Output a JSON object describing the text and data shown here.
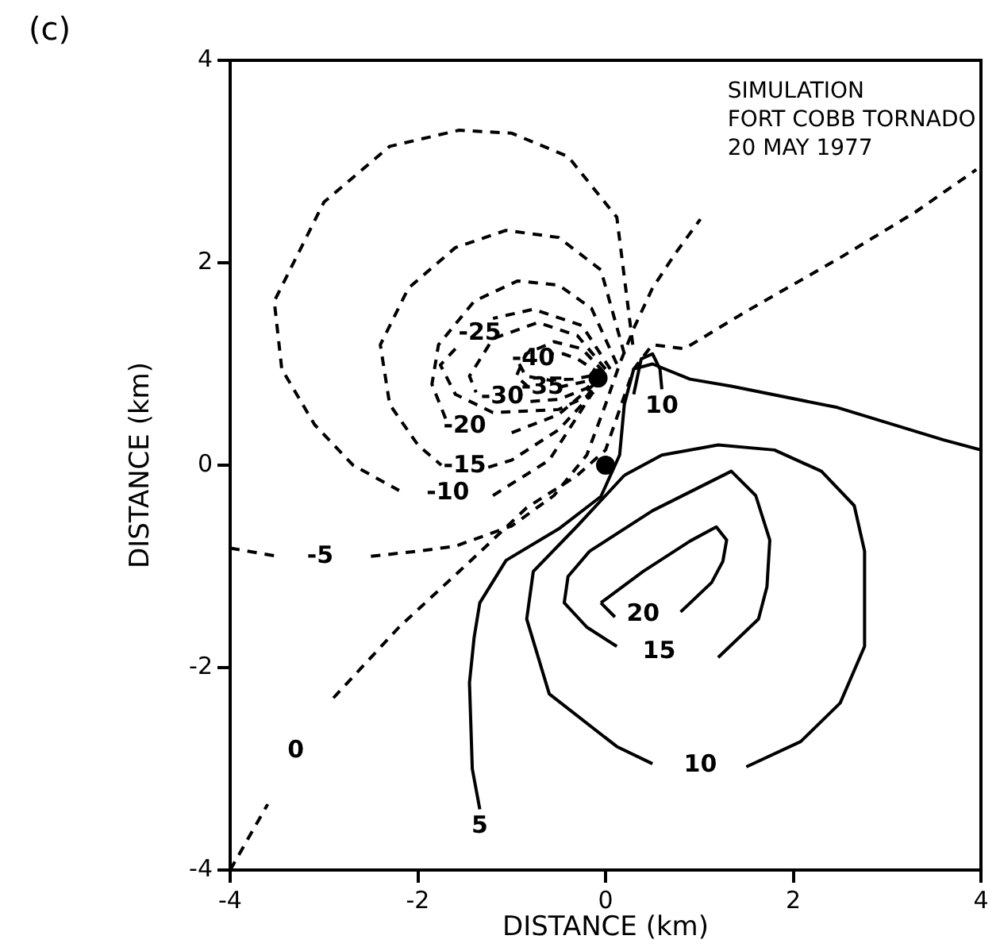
{
  "chart_data": {
    "type": "line",
    "title": "(c)",
    "xlabel": "DISTANCE (km)",
    "ylabel": "DISTANCE (km)",
    "xlim": [
      -4,
      4
    ],
    "ylim": [
      -4,
      4
    ],
    "xticks": [
      -4,
      -2,
      0,
      2,
      4
    ],
    "yticks": [
      -4,
      -2,
      0,
      2,
      4
    ],
    "grid": false,
    "legend": false,
    "marker": "none",
    "series": [
      {
        "name": "-10",
        "color": "#000000",
        "line_style": "dashed",
        "x": [
          0.29,
          0.12,
          -0.4,
          -1.0,
          -1.56,
          -2.3,
          -3.0,
          -3.53,
          -3.45,
          -3.1,
          -2.69,
          -2.2,
          -1.68,
          -1.2,
          -0.6,
          -0.15
        ],
        "values": [
          1.19,
          2.45,
          3.05,
          3.28,
          3.31,
          3.15,
          2.6,
          1.62,
          0.95,
          0.4,
          0.0,
          -0.25,
          null,
          -0.3,
          0.05,
          0.7
        ]
      },
      {
        "name": "-15",
        "color": "#000000",
        "line_style": "dashed",
        "x": [
          0.2,
          -0.05,
          -0.5,
          -1.06,
          -1.6,
          -2.1,
          -2.4,
          -2.3,
          -2.0,
          -1.75,
          -1.5,
          -1.25,
          -1.0,
          -0.5,
          -0.1
        ],
        "values": [
          1.1,
          1.93,
          2.25,
          2.32,
          2.15,
          1.75,
          1.19,
          0.6,
          0.2,
          0.0,
          null,
          -0.02,
          0.05,
          0.35,
          0.75
        ]
      },
      {
        "name": "-20",
        "color": "#000000",
        "line_style": "dashed",
        "x": [
          0.12,
          -0.15,
          -0.5,
          -0.94,
          -1.4,
          -1.78,
          -1.85,
          -1.7,
          -1.5,
          -1.0,
          -0.5,
          -0.12
        ],
        "values": [
          1.0,
          1.55,
          1.78,
          1.82,
          1.62,
          1.19,
          0.8,
          0.45,
          null,
          0.32,
          0.5,
          0.8
        ]
      },
      {
        "name": "-25",
        "color": "#000000",
        "line_style": "dashed",
        "x": [
          0.05,
          -0.25,
          -0.77,
          -1.2,
          -1.34,
          -1.6,
          -1.76,
          -1.6,
          -1.2,
          -0.5,
          -0.2,
          -0.05
        ],
        "values": [
          0.95,
          1.38,
          1.54,
          1.45,
          null,
          1.15,
          0.99,
          0.7,
          0.52,
          0.55,
          0.68,
          0.87
        ]
      },
      {
        "name": "-30",
        "color": "#000000",
        "line_style": "dashed",
        "x": [
          0.0,
          -0.3,
          -0.72,
          -1.2,
          -1.45,
          -1.38,
          -1.1,
          -0.8,
          -0.5,
          -0.2,
          -0.05
        ],
        "values": [
          0.95,
          1.28,
          1.41,
          1.25,
          0.88,
          0.72,
          null,
          0.63,
          0.65,
          0.76,
          0.88
        ]
      },
      {
        "name": "-35",
        "color": "#000000",
        "line_style": "dashed",
        "x": [
          -0.02,
          -0.25,
          -0.55,
          -0.85,
          -0.95,
          -0.82,
          -0.67,
          -0.5,
          -0.2,
          -0.05
        ],
        "values": [
          0.92,
          1.15,
          1.22,
          1.1,
          0.88,
          0.77,
          null,
          0.77,
          0.83,
          0.89
        ]
      },
      {
        "name": "-40",
        "color": "#000000",
        "line_style": "dashed",
        "x": [
          -0.05,
          -0.3,
          -0.45,
          -0.6,
          -0.77,
          -0.92,
          -0.85,
          -0.6,
          -0.35,
          -0.05
        ],
        "values": [
          0.9,
          1.05,
          1.1,
          1.1,
          null,
          1.0,
          0.88,
          0.84,
          0.85,
          0.9
        ]
      },
      {
        "name": "-5",
        "color": "#000000",
        "line_style": "dashed",
        "x": [
          -4.0,
          -3.5,
          -3.04,
          -2.5,
          -2.0,
          -1.6,
          -1.0,
          -0.55,
          -0.2,
          0.0,
          0.15,
          0.3,
          0.5,
          0.75,
          1.01
        ],
        "values": [
          -0.82,
          -0.9,
          null,
          -0.9,
          -0.85,
          -0.8,
          -0.6,
          -0.3,
          0.1,
          0.6,
          1.0,
          1.35,
          1.75,
          2.1,
          2.43
        ]
      },
      {
        "name": "0",
        "color": "#000000",
        "line_style": "dashed",
        "x": [
          -4.0,
          -3.6,
          -3.3,
          -2.9,
          -2.2,
          -1.34,
          -0.84,
          -0.3,
          0.0,
          0.15,
          0.3,
          0.5,
          0.84,
          1.5,
          2.5,
          3.3,
          3.95
        ],
        "values": [
          -4.0,
          -3.35,
          null,
          -2.3,
          -1.6,
          -0.86,
          -0.42,
          -0.1,
          0.15,
          0.55,
          0.95,
          1.19,
          1.15,
          1.52,
          2.05,
          2.5,
          2.92
        ]
      },
      {
        "name": "5",
        "color": "#000000",
        "line_style": "solid",
        "x": [
          -1.34,
          -1.42,
          -1.45,
          -1.4,
          -1.34,
          -1.06,
          -0.5,
          -0.05,
          0.15,
          0.2,
          0.3,
          0.5,
          0.9,
          1.34,
          2.47,
          3.6,
          4.0
        ],
        "values": [
          -3.4,
          -3.0,
          -2.15,
          -1.7,
          -1.36,
          -0.94,
          -0.63,
          -0.31,
          0.1,
          0.6,
          0.95,
          1.0,
          0.85,
          0.78,
          0.57,
          0.25,
          0.15
        ]
      },
      {
        "name": "10",
        "color": "#000000",
        "line_style": "solid",
        "x": [
          0.2,
          0.6,
          1.2,
          1.8,
          2.3,
          2.65,
          2.76,
          2.76,
          2.5,
          2.08,
          1.5,
          1.01,
          0.5,
          0.12,
          -0.6,
          -0.84,
          -0.77,
          -0.3,
          0.2
        ],
        "values": [
          -0.1,
          0.1,
          0.2,
          0.15,
          -0.06,
          -0.4,
          -0.85,
          -1.79,
          -2.35,
          -2.73,
          -2.98,
          null,
          -2.95,
          -2.78,
          -2.26,
          -1.52,
          -1.05,
          -0.6,
          -0.1
        ]
      },
      {
        "name": "10",
        "color": "#000000",
        "line_style": "solid",
        "x": [
          0.6,
          0.58,
          0.5,
          0.38,
          0.3
        ],
        "values": [
          0.75,
          0.95,
          1.1,
          1.05,
          0.7
        ]
      },
      {
        "name": "15",
        "color": "#000000",
        "line_style": "solid",
        "x": [
          -0.17,
          0.5,
          1.34,
          1.6,
          1.75,
          1.72,
          1.63,
          1.2,
          0.57,
          0.12,
          -0.2,
          -0.44,
          -0.4,
          -0.17
        ],
        "values": [
          -0.85,
          -0.45,
          -0.06,
          -0.3,
          -0.74,
          -1.2,
          -1.52,
          -1.9,
          null,
          -1.79,
          -1.6,
          -1.36,
          -1.1,
          -0.85
        ]
      },
      {
        "name": "20",
        "color": "#000000",
        "line_style": "solid",
        "x": [
          -0.05,
          0.4,
          0.9,
          1.18,
          1.29,
          1.25,
          1.13,
          0.8,
          0.4,
          0.1,
          -0.05
        ],
        "values": [
          -1.36,
          -1.05,
          -0.75,
          -0.61,
          -0.74,
          -0.95,
          -1.16,
          -1.45,
          null,
          -1.5,
          -1.36
        ]
      },
      {
        "type": "scatter",
        "color": "#000000",
        "marker": "circle",
        "x": [
          0,
          -0.08
        ],
        "values": [
          0,
          0.86
        ]
      }
    ],
    "annotations": [
      "SIMULATION\nFORT COBB TORNADO\n20 MAY 1977"
    ]
  }
}
